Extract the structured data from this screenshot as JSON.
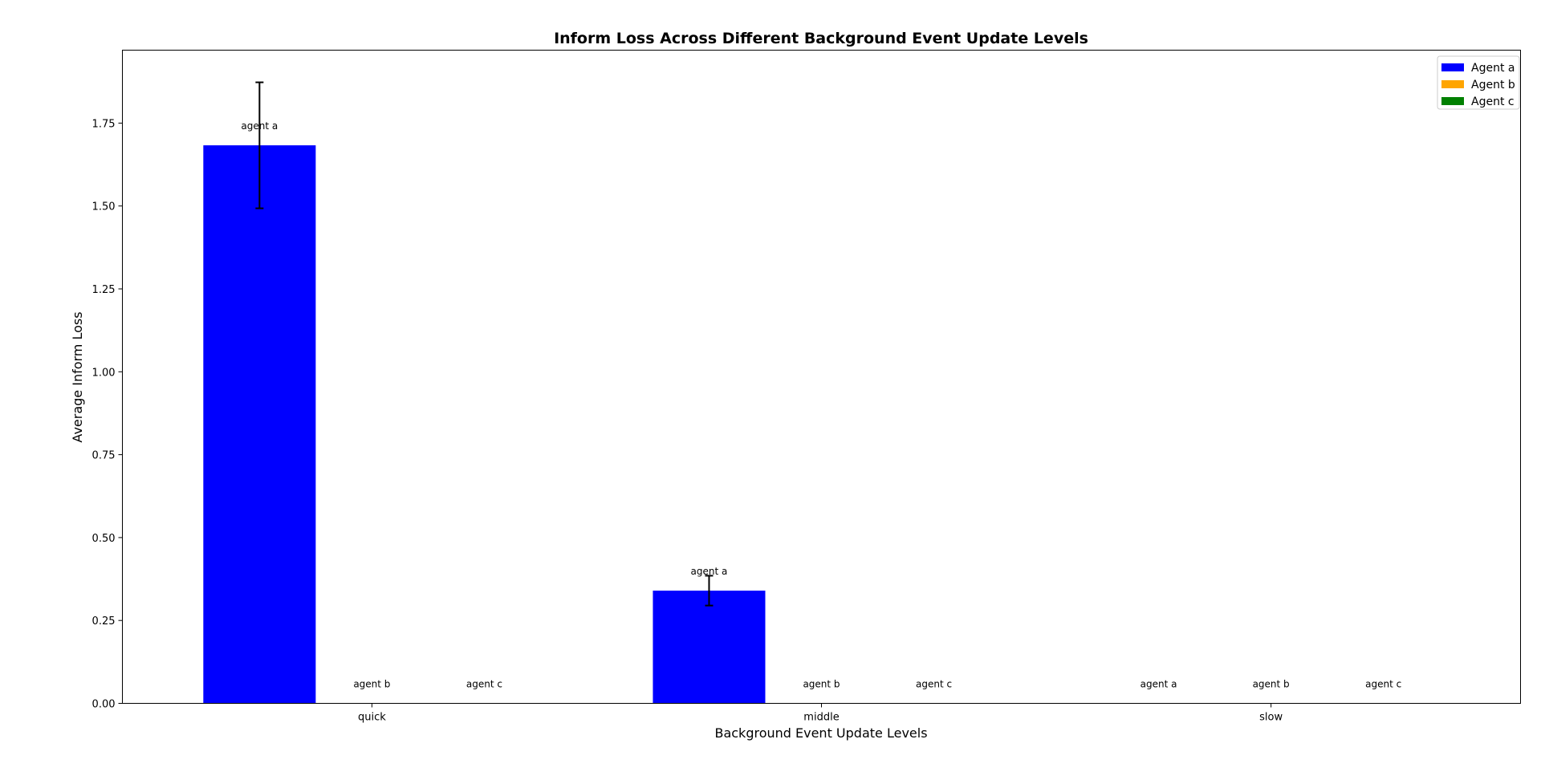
{
  "chart_data": {
    "type": "bar",
    "title": "Inform Loss Across Different Background Event Update Levels",
    "xlabel": "Background Event Update Levels",
    "ylabel": "Average Inform Loss",
    "categories": [
      "quick",
      "middle",
      "slow"
    ],
    "ylim": [
      0,
      1.97
    ],
    "yticks": [
      "0.00",
      "0.25",
      "0.50",
      "0.75",
      "1.00",
      "1.25",
      "1.50",
      "1.75"
    ],
    "grid": false,
    "legend_position": "top-right",
    "series": [
      {
        "name": "Agent a",
        "label": "agent a",
        "color": "#0000ff",
        "values": [
          1.683,
          0.34,
          0.0
        ],
        "errors": [
          0.19,
          0.045,
          0.0
        ]
      },
      {
        "name": "Agent b",
        "label": "agent b",
        "color": "#ffa500",
        "values": [
          0.0,
          0.0,
          0.0
        ],
        "errors": [
          0.0,
          0.0,
          0.0
        ]
      },
      {
        "name": "Agent c",
        "label": "agent c",
        "color": "#008000",
        "values": [
          0.0,
          0.0,
          0.0
        ],
        "errors": [
          0.0,
          0.0,
          0.0
        ]
      }
    ]
  }
}
